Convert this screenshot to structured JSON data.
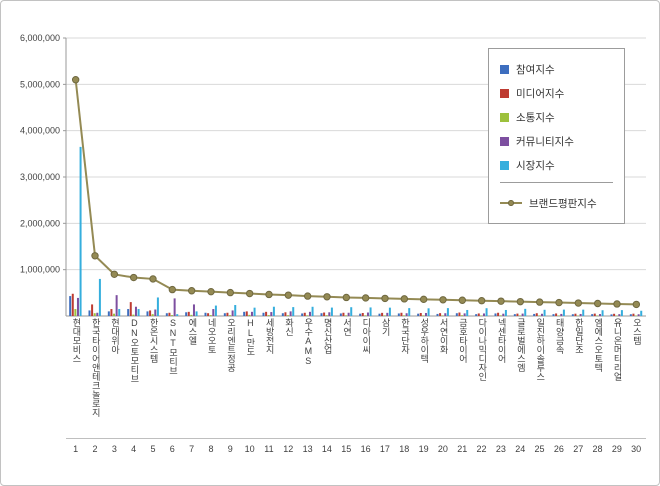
{
  "page": {
    "background": "#ffffff",
    "frame_border_color": "#c2c2c2"
  },
  "legend": {
    "items": [
      {
        "label": "참여지수",
        "color": "#3d6ebf",
        "type": "bar"
      },
      {
        "label": "미디어지수",
        "color": "#be3b31",
        "type": "bar"
      },
      {
        "label": "소통지수",
        "color": "#9dc13c",
        "type": "bar"
      },
      {
        "label": "커뮤니티지수",
        "color": "#7d4fa0",
        "type": "bar"
      },
      {
        "label": "시장지수",
        "color": "#35aedd",
        "type": "bar"
      },
      {
        "label": "브랜드평판지수",
        "color": "#948a54",
        "type": "line"
      }
    ]
  },
  "chart_data": {
    "type": "bar",
    "title": "",
    "xlabel": "",
    "ylabel": "",
    "ylim": [
      0,
      6000000
    ],
    "ytick_interval": 1000000,
    "ytick_labels": [
      "1,000,000",
      "2,000,000",
      "3,000,000",
      "4,000,000",
      "5,000,000",
      "6,000,000"
    ],
    "grid": true,
    "legend_position": "upper-right",
    "categories": [
      "현대모비스",
      "한국타이어앤테크놀로지",
      "현대위아",
      "DN오토모티브",
      "한온시스템",
      "SNT모티브",
      "에스엘",
      "네오오토",
      "오리엔트정공",
      "HL만도",
      "세방전지",
      "화신",
      "우수AMS",
      "명신산업",
      "서연",
      "디아이씨",
      "삼기",
      "한국단자",
      "성우하이텍",
      "서연이화",
      "금호타이어",
      "다이나믹디자인",
      "넥센타이어",
      "글로벌에스엠",
      "일진하이솔루스",
      "태양금속",
      "한일단조",
      "엠에스오토텍",
      "유니온머티리얼",
      "오스템"
    ],
    "ranks": [
      "1",
      "2",
      "3",
      "4",
      "5",
      "6",
      "7",
      "8",
      "9",
      "10",
      "11",
      "12",
      "13",
      "14",
      "15",
      "16",
      "17",
      "18",
      "19",
      "20",
      "21",
      "22",
      "23",
      "24",
      "25",
      "26",
      "27",
      "28",
      "29",
      "30"
    ],
    "series": [
      {
        "name": "참여지수",
        "color": "#3d6ebf",
        "values": [
          430000,
          120000,
          100000,
          150000,
          100000,
          60000,
          80000,
          70000,
          60000,
          90000,
          70000,
          60000,
          55000,
          60000,
          55000,
          50000,
          50000,
          55000,
          50000,
          45000,
          60000,
          40000,
          55000,
          40000,
          45000,
          40000,
          38000,
          40000,
          35000,
          38000
        ]
      },
      {
        "name": "미디어지수",
        "color": "#be3b31",
        "values": [
          480000,
          250000,
          150000,
          300000,
          120000,
          70000,
          90000,
          60000,
          70000,
          100000,
          90000,
          80000,
          70000,
          75000,
          70000,
          65000,
          68000,
          70000,
          65000,
          62000,
          75000,
          55000,
          70000,
          52000,
          60000,
          55000,
          50000,
          52000,
          48000,
          50000
        ]
      },
      {
        "name": "소통지수",
        "color": "#9dc13c",
        "values": [
          150000,
          60000,
          50000,
          30000,
          40000,
          20000,
          25000,
          20000,
          18000,
          25000,
          20000,
          18000,
          16000,
          18000,
          15000,
          15000,
          14000,
          15000,
          14000,
          13000,
          18000,
          12000,
          15000,
          12000,
          13000,
          12000,
          11000,
          12000,
          10000,
          11000
        ]
      },
      {
        "name": "커뮤니티지수",
        "color": "#7d4fa0",
        "values": [
          390000,
          70000,
          450000,
          200000,
          140000,
          380000,
          250000,
          150000,
          120000,
          90000,
          85000,
          100000,
          90000,
          80000,
          70000,
          75000,
          68000,
          60000,
          65000,
          60000,
          57000,
          55000,
          50000,
          52000,
          48000,
          45000,
          44000,
          42000,
          40000,
          38000
        ]
      },
      {
        "name": "시장지수",
        "color": "#35aedd",
        "values": [
          3650000,
          800000,
          150000,
          150000,
          400000,
          40000,
          100000,
          225000,
          237000,
          180000,
          200000,
          192000,
          199000,
          182000,
          190000,
          185000,
          180000,
          170000,
          166000,
          170000,
          130000,
          168000,
          130000,
          154000,
          134000,
          138000,
          137000,
          124000,
          127000,
          113000
        ]
      }
    ],
    "line_series": {
      "name": "브랜드평판지수",
      "color": "#948a54",
      "marker_stroke": "#6f6840",
      "values": [
        5100000,
        1300000,
        900000,
        830000,
        800000,
        570000,
        545000,
        525000,
        505000,
        485000,
        465000,
        450000,
        430000,
        415000,
        400000,
        390000,
        380000,
        370000,
        360000,
        350000,
        340000,
        330000,
        320000,
        310000,
        300000,
        290000,
        280000,
        270000,
        260000,
        250000
      ]
    }
  }
}
